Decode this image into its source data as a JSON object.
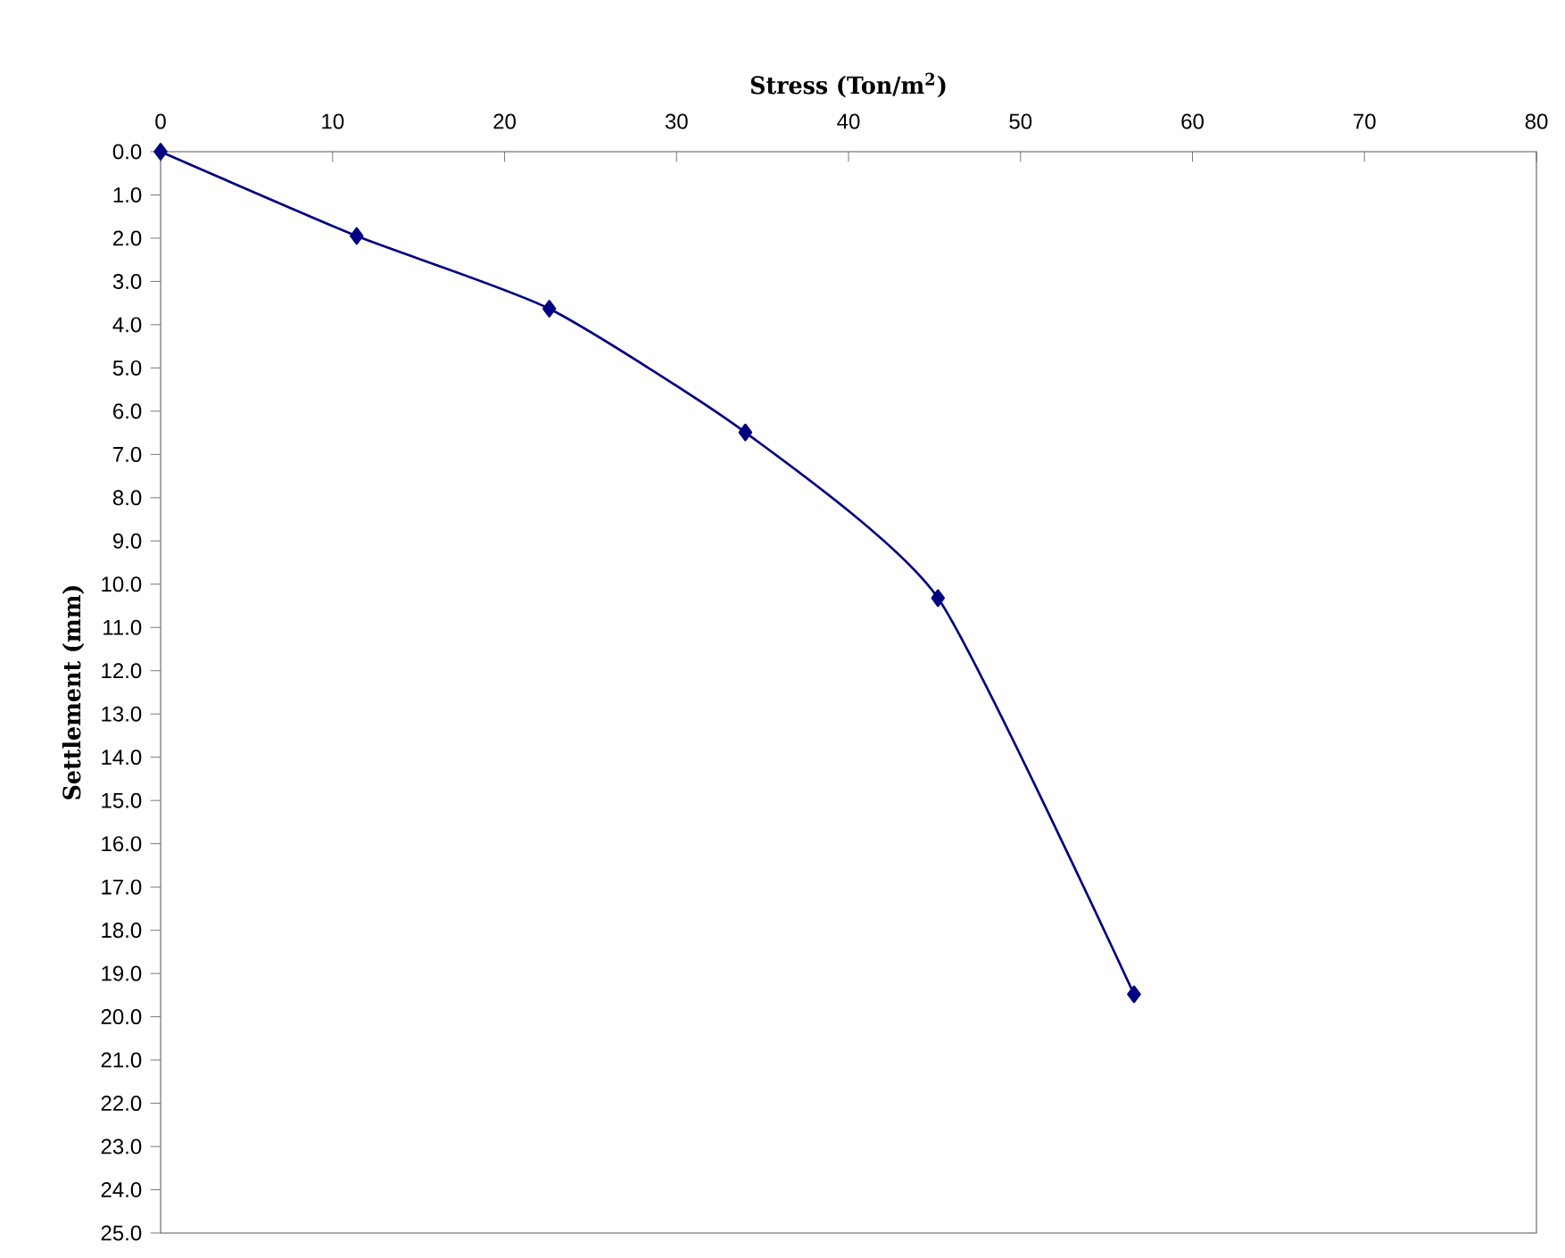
{
  "chart_data": {
    "type": "line",
    "xlabel": "Stress (Ton/m$^{2}$)",
    "ylabel": "Settlement (mm)",
    "x": [
      0,
      11.4,
      22.6,
      34.0,
      45.2,
      56.6
    ],
    "series": [
      {
        "color": "#000080",
        "values": [
          0,
          1.95,
          3.63,
          6.49,
          10.32,
          19.48
        ]
      }
    ],
    "marker": "diamond",
    "line_style": "solid",
    "xlim": [
      0,
      80
    ],
    "xticks": [
      0,
      10,
      20,
      30,
      40,
      50,
      60,
      70,
      80
    ],
    "ylim": [
      25,
      0
    ],
    "yticks": [
      {
        "value": 0,
        "label": "0.0"
      },
      {
        "value": 1,
        "label": "1.0"
      },
      {
        "value": 2,
        "label": "2.0"
      },
      {
        "value": 3,
        "label": "3.0"
      },
      {
        "value": 4,
        "label": "4.0"
      },
      {
        "value": 5,
        "label": "5.0"
      },
      {
        "value": 6,
        "label": "6.0"
      },
      {
        "value": 7,
        "label": "7.0"
      },
      {
        "value": 8,
        "label": "8.0"
      },
      {
        "value": 9,
        "label": "9.0"
      },
      {
        "value": 10,
        "label": "10.0"
      },
      {
        "value": 11,
        "label": "11.0"
      },
      {
        "value": 12,
        "label": "12.0"
      },
      {
        "value": 13,
        "label": "13.0"
      },
      {
        "value": 14,
        "label": "14.0"
      },
      {
        "value": 15,
        "label": "15.0"
      },
      {
        "value": 16,
        "label": "16.0"
      },
      {
        "value": 17,
        "label": "17.0"
      },
      {
        "value": 18,
        "label": "18.0"
      },
      {
        "value": 19,
        "label": "19.0"
      },
      {
        "value": 20,
        "label": "20.0"
      },
      {
        "value": 21,
        "label": "21.0"
      },
      {
        "value": 22,
        "label": "22.0"
      },
      {
        "value": 23,
        "label": "23.0"
      },
      {
        "value": 24,
        "label": "24.0"
      },
      {
        "value": 25,
        "label": "25.0"
      }
    ]
  }
}
